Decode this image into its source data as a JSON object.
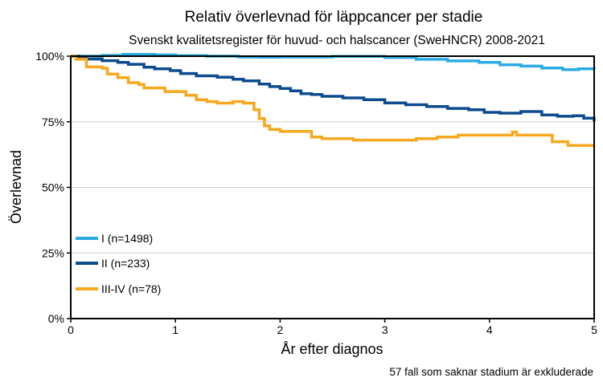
{
  "chart_data": {
    "type": "line",
    "title": "Relativ överlevnad för läppcancer per stadie",
    "subtitle": "Svenskt kvalitetsregister för huvud- och halscancer (SweHNCR) 2008-2021",
    "xlabel": "År efter diagnos",
    "ylabel": "Överlevnad",
    "note": "57 fall som saknar stadium är exkluderade",
    "xlim": [
      0,
      5
    ],
    "ylim": [
      0,
      100
    ],
    "x_ticks": [
      0,
      1,
      2,
      3,
      4,
      5
    ],
    "x_tick_labels": [
      "0",
      "1",
      "2",
      "3",
      "4",
      "5"
    ],
    "y_ticks": [
      0,
      25,
      50,
      75,
      100
    ],
    "y_tick_labels": [
      "0%",
      "25%",
      "50%",
      "75%",
      "100%"
    ],
    "grid": "horizontal",
    "legend_position": "bottom-left",
    "series": [
      {
        "name": "I (n=1498)",
        "color": "#2AABE2",
        "x": [
          0,
          0.3,
          0.5,
          0.8,
          1.0,
          1.3,
          1.6,
          1.8,
          2.0,
          2.5,
          3.0,
          3.3,
          3.6,
          3.9,
          4.1,
          4.3,
          4.5,
          4.7,
          4.85,
          5.0
        ],
        "values": [
          100,
          100.3,
          100.7,
          100.5,
          100.2,
          100,
          99.7,
          99.6,
          99.7,
          99.9,
          99.5,
          98.8,
          98.2,
          97.6,
          96.7,
          96.2,
          95.5,
          94.9,
          95.2,
          94.9
        ]
      },
      {
        "name": "II (n=233)",
        "color": "#0B4B8E",
        "x": [
          0,
          0.08,
          0.15,
          0.3,
          0.45,
          0.55,
          0.7,
          0.8,
          0.95,
          1.05,
          1.2,
          1.4,
          1.55,
          1.65,
          1.8,
          1.9,
          2.0,
          2.1,
          2.2,
          2.3,
          2.4,
          2.6,
          2.8,
          3.0,
          3.2,
          3.4,
          3.6,
          3.8,
          3.95,
          4.1,
          4.3,
          4.5,
          4.65,
          4.8,
          4.9,
          5.0
        ],
        "values": [
          100,
          99.4,
          98.9,
          98.3,
          97.6,
          96.9,
          95.8,
          95.2,
          94.5,
          93.4,
          92.5,
          92,
          91.2,
          90.6,
          89.4,
          88.4,
          87.7,
          86.8,
          85.7,
          85.4,
          84.7,
          84.1,
          83.4,
          82.2,
          81.5,
          80.8,
          80.1,
          79.6,
          78.6,
          78.3,
          78.9,
          77.6,
          77.1,
          77.3,
          76.4,
          75.2
        ]
      },
      {
        "name": "III-IV (n=78)",
        "color": "#F6A81E",
        "x": [
          0,
          0.05,
          0.15,
          0.3,
          0.35,
          0.45,
          0.55,
          0.65,
          0.7,
          0.9,
          1.1,
          1.2,
          1.3,
          1.4,
          1.55,
          1.65,
          1.75,
          1.8,
          1.85,
          1.9,
          2.0,
          2.2,
          2.3,
          2.4,
          2.6,
          2.7,
          2.9,
          3.3,
          3.5,
          3.7,
          4.0,
          4.22,
          4.26,
          4.3,
          4.6,
          4.75,
          5.0
        ],
        "values": [
          100,
          98.8,
          95.9,
          95.4,
          93.2,
          91.8,
          89.9,
          89.2,
          87.9,
          86.5,
          85.1,
          83.4,
          82.7,
          82.1,
          82.7,
          82.1,
          79.6,
          76.2,
          73.5,
          72.1,
          71.3,
          71.3,
          69.2,
          68.6,
          68.6,
          68,
          68,
          68.6,
          69.2,
          69.9,
          69.9,
          71.1,
          69.9,
          69.9,
          67.4,
          66,
          66
        ]
      }
    ]
  }
}
